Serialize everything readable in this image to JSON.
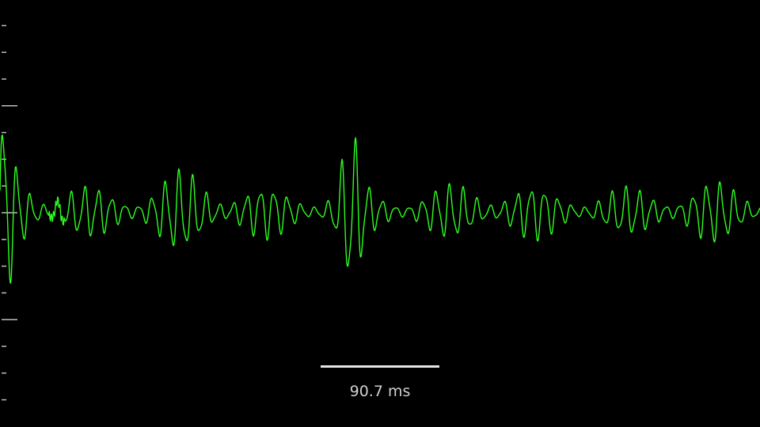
{
  "scope": {
    "trace_color": "#2bff1e",
    "tick_color": "#bdbdbd",
    "background": "#000000",
    "amplitude_ticks": {
      "minor_count": 15,
      "major_every": 4
    }
  },
  "time_scale": {
    "label": "90.7 ms",
    "bar_color": "#e6e6e6"
  }
}
